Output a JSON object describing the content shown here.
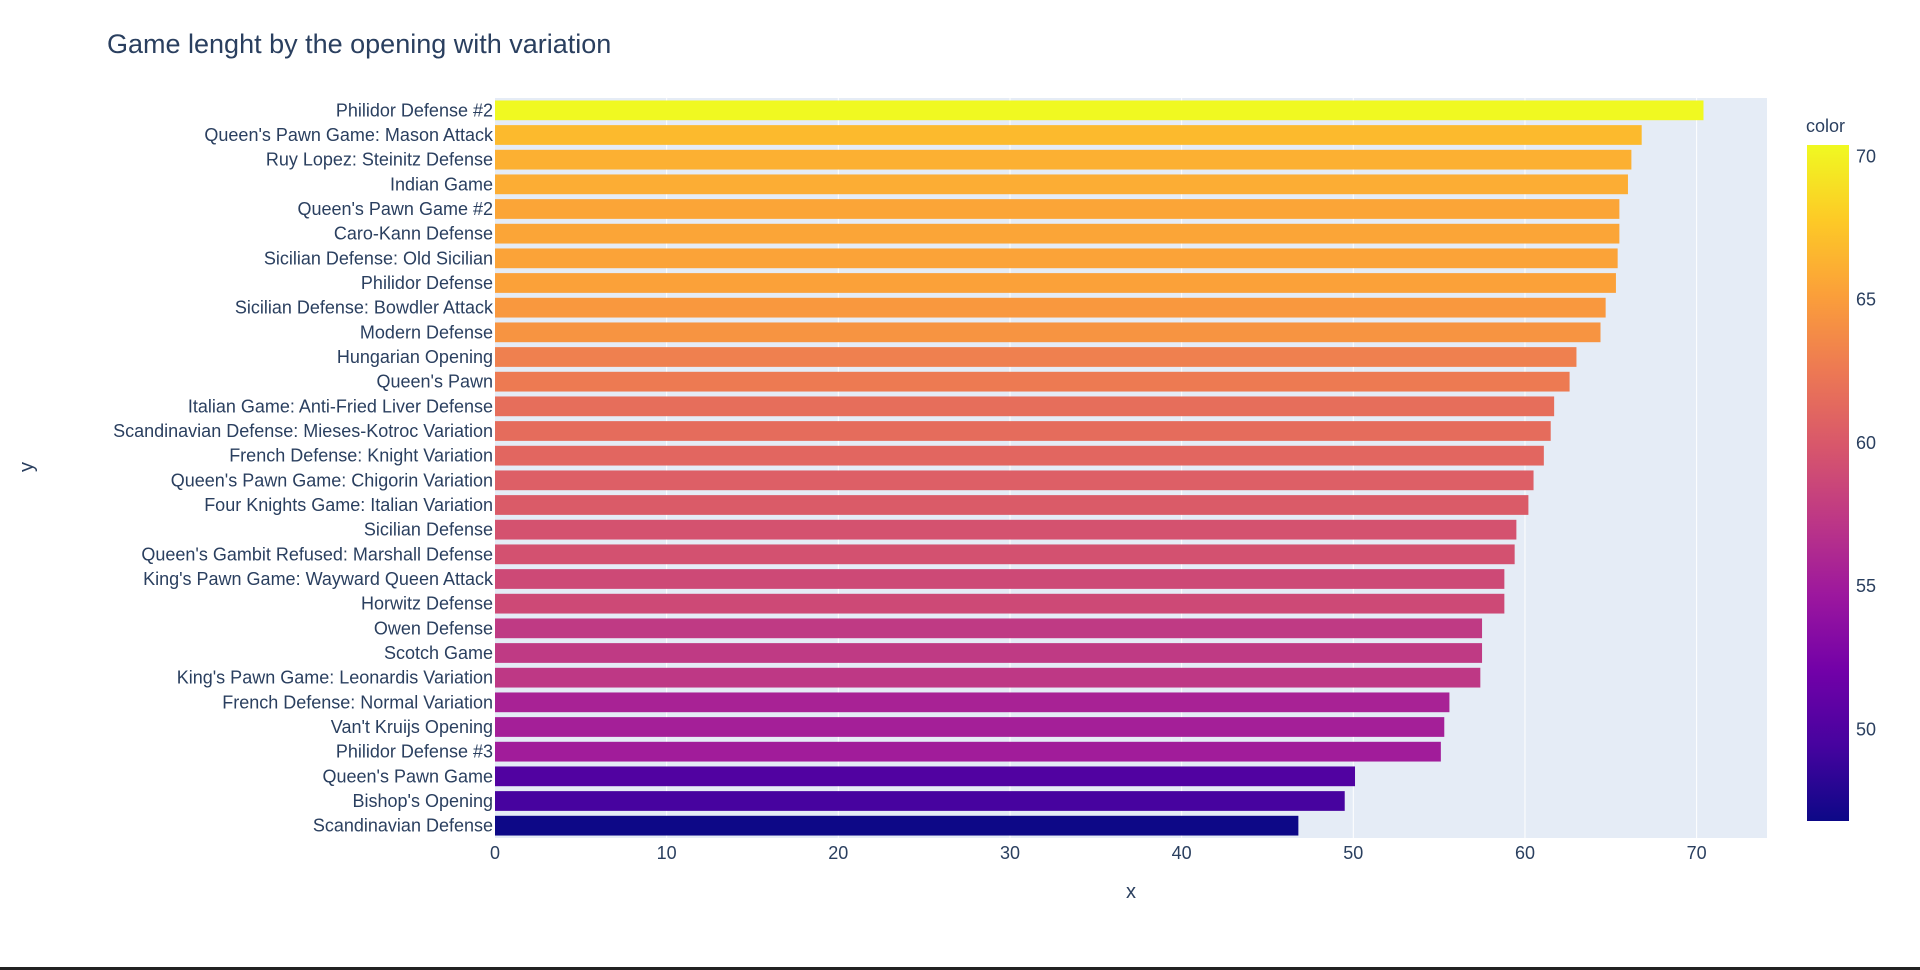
{
  "chart_data": {
    "type": "bar",
    "orientation": "horizontal",
    "title": "Game lenght by the opening with variation",
    "xlabel": "x",
    "ylabel": "y",
    "xlim": [
      0,
      74.1
    ],
    "x_ticks": [
      0,
      10,
      20,
      30,
      40,
      50,
      60,
      70
    ],
    "grid": true,
    "categories": [
      "Philidor Defense #2",
      "Queen's Pawn Game: Mason Attack",
      "Ruy Lopez: Steinitz Defense",
      "Indian Game",
      "Queen's Pawn Game #2",
      "Caro-Kann Defense",
      "Sicilian Defense: Old Sicilian",
      "Philidor Defense",
      "Sicilian Defense: Bowdler Attack",
      "Modern Defense",
      "Hungarian Opening",
      "Queen's Pawn",
      "Italian Game: Anti-Fried Liver Defense",
      "Scandinavian Defense: Mieses-Kotroc Variation",
      "French Defense: Knight Variation",
      "Queen's Pawn Game: Chigorin Variation",
      "Four Knights Game: Italian Variation",
      "Sicilian Defense",
      "Queen's Gambit Refused: Marshall Defense",
      "King's Pawn Game: Wayward Queen Attack",
      "Horwitz Defense",
      "Owen Defense",
      "Scotch Game",
      "King's Pawn Game: Leonardis Variation",
      "French Defense: Normal Variation",
      "Van't Kruijs Opening",
      "Philidor Defense #3",
      "Queen's Pawn Game",
      "Bishop's Opening",
      "Scandinavian Defense"
    ],
    "values": [
      70.4,
      66.8,
      66.2,
      66.0,
      65.5,
      65.5,
      65.4,
      65.3,
      64.7,
      64.4,
      63.0,
      62.6,
      61.7,
      61.5,
      61.1,
      60.5,
      60.2,
      59.5,
      59.4,
      58.8,
      58.8,
      57.5,
      57.5,
      57.4,
      55.6,
      55.3,
      55.1,
      50.1,
      49.5,
      46.8
    ],
    "colorbar": {
      "title": "color",
      "ticks": [
        50,
        55,
        60,
        65,
        70
      ],
      "range": [
        46.8,
        70.4
      ],
      "colorscale": [
        "#0d0887",
        "#46039f",
        "#7201a8",
        "#9c179e",
        "#bd3786",
        "#d8576b",
        "#ed7953",
        "#fb9f3a",
        "#fdca26",
        "#f0f921"
      ]
    },
    "plot_background": "#e5ecf6",
    "gridline_color": "#ffffff",
    "text_color": "#2a3f5f"
  }
}
